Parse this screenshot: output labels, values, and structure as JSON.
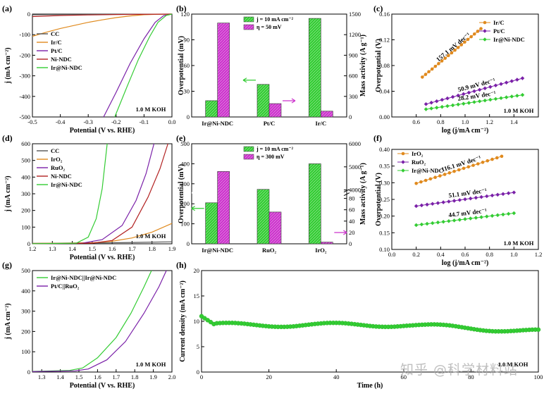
{
  "watermark": "知乎 @科学材料站",
  "chart_data": [
    {
      "panel": "(a)",
      "type": "line",
      "xlabel": "Potential (V vs. RHE)",
      "ylabel": "j (mA cm⁻²)",
      "xlim": [
        -0.5,
        0.0
      ],
      "ylim": [
        -500,
        0
      ],
      "xticks": [
        -0.5,
        -0.4,
        -0.3,
        -0.2,
        -0.1,
        0.0
      ],
      "yticks": [
        -500,
        -400,
        -300,
        -200,
        -100,
        0
      ],
      "annotations": [
        "1.0 M KOH"
      ],
      "legend_position": "middle-left",
      "series": [
        {
          "name": "CC",
          "color": "#555555",
          "points": [
            [
              -0.5,
              -3
            ],
            [
              -0.4,
              -2
            ],
            [
              -0.2,
              -1
            ],
            [
              0,
              0
            ]
          ]
        },
        {
          "name": "Ir/C",
          "color": "#e08a1e",
          "points": [
            [
              -0.5,
              -108
            ],
            [
              -0.45,
              -88
            ],
            [
              -0.4,
              -70
            ],
            [
              -0.35,
              -55
            ],
            [
              -0.3,
              -40
            ],
            [
              -0.25,
              -28
            ],
            [
              -0.2,
              -17
            ],
            [
              -0.15,
              -9
            ],
            [
              -0.1,
              -3
            ],
            [
              -0.05,
              -1
            ],
            [
              0,
              0
            ]
          ]
        },
        {
          "name": "Pt/C",
          "color": "#7a20a8",
          "points": [
            [
              -0.245,
              -500
            ],
            [
              -0.2,
              -380
            ],
            [
              -0.15,
              -240
            ],
            [
              -0.1,
              -120
            ],
            [
              -0.06,
              -40
            ],
            [
              -0.03,
              -8
            ],
            [
              0,
              0
            ]
          ]
        },
        {
          "name": "Ni-NDC",
          "color": "#b22222",
          "points": [
            [
              -0.5,
              -12
            ],
            [
              -0.4,
              -7
            ],
            [
              -0.3,
              -4
            ],
            [
              -0.2,
              -2
            ],
            [
              0,
              0
            ]
          ]
        },
        {
          "name": "Ir@Ni-NDC",
          "color": "#33cc33",
          "points": [
            [
              -0.205,
              -500
            ],
            [
              -0.16,
              -350
            ],
            [
              -0.12,
              -220
            ],
            [
              -0.08,
              -110
            ],
            [
              -0.05,
              -40
            ],
            [
              -0.02,
              -6
            ],
            [
              0,
              0
            ]
          ]
        }
      ]
    },
    {
      "panel": "(b)",
      "type": "bar",
      "categories": [
        "Ir@Ni-NDC",
        "Pt/C",
        "Ir/C"
      ],
      "ylabel": "Overpotential (mV)",
      "y2label": "Mass activity (A g⁻¹)",
      "ylim": [
        0,
        120
      ],
      "y2lim": [
        0,
        1500
      ],
      "yticks": [
        0,
        30,
        60,
        90,
        120
      ],
      "y2ticks": [
        0,
        300,
        600,
        900,
        1200,
        1500
      ],
      "legend_position": "top-left",
      "series": [
        {
          "name": "j = 10 mA cm⁻²",
          "axis": "left",
          "color": "#33cc33",
          "values": [
            19,
            38,
            115
          ]
        },
        {
          "name": "η = 50 mV",
          "axis": "right",
          "color": "#cc33cc",
          "values": [
            1370,
            195,
            85
          ]
        }
      ]
    },
    {
      "panel": "(c)",
      "type": "scatter",
      "xlabel": "log (j/mA cm⁻²)",
      "ylabel": "Overpotential (V)",
      "xlim": [
        0.4,
        1.6
      ],
      "ylim": [
        0.0,
        0.16
      ],
      "xticks": [
        0.6,
        0.8,
        1.0,
        1.2,
        1.4
      ],
      "yticks": [
        0.0,
        0.04,
        0.08,
        0.12,
        0.16
      ],
      "annotations": [
        "1.0 M KOH"
      ],
      "legend_position": "top-right",
      "series": [
        {
          "name": "Ir/C",
          "color": "#e08a1e",
          "marker": "circle",
          "x0": 0.65,
          "x1": 1.13,
          "y0": 0.062,
          "slope": 0.1571,
          "label": "157.1 mV dec⁻¹"
        },
        {
          "name": "Pt/C",
          "color": "#7a20a8",
          "marker": "diamond",
          "x0": 0.68,
          "x1": 1.47,
          "y0": 0.02,
          "slope": 0.0509,
          "label": "50.9 mV dec⁻¹"
        },
        {
          "name": "Ir@Ni-NDC",
          "color": "#33cc33",
          "marker": "diamond",
          "x0": 0.68,
          "x1": 1.47,
          "y0": 0.012,
          "slope": 0.0282,
          "label": "28.2 mV dec⁻¹"
        }
      ]
    },
    {
      "panel": "(d)",
      "type": "line",
      "xlabel": "Potential (V vs. RHE)",
      "ylabel": "j (mA cm⁻²)",
      "xlim": [
        1.2,
        1.9
      ],
      "ylim": [
        0,
        600
      ],
      "xticks": [
        1.2,
        1.3,
        1.4,
        1.5,
        1.6,
        1.7,
        1.8,
        1.9
      ],
      "yticks": [
        0,
        100,
        200,
        300,
        400,
        500,
        600
      ],
      "annotations": [
        "1.0 M KOH"
      ],
      "legend_position": "top-left",
      "series": [
        {
          "name": "CC",
          "color": "#555555",
          "points": [
            [
              1.2,
              3
            ],
            [
              1.5,
              5
            ],
            [
              1.7,
              8
            ],
            [
              1.9,
              12
            ]
          ]
        },
        {
          "name": "IrO₂",
          "color": "#e08a1e",
          "points": [
            [
              1.2,
              2
            ],
            [
              1.5,
              6
            ],
            [
              1.6,
              15
            ],
            [
              1.7,
              35
            ],
            [
              1.8,
              70
            ],
            [
              1.9,
              122
            ]
          ]
        },
        {
          "name": "RuO₂",
          "color": "#7a20a8",
          "points": [
            [
              1.2,
              1
            ],
            [
              1.45,
              4
            ],
            [
              1.55,
              25
            ],
            [
              1.65,
              110
            ],
            [
              1.72,
              260
            ],
            [
              1.77,
              420
            ],
            [
              1.81,
              600
            ]
          ]
        },
        {
          "name": "Ni-NDC",
          "color": "#b22222",
          "points": [
            [
              1.2,
              1
            ],
            [
              1.5,
              4
            ],
            [
              1.6,
              20
            ],
            [
              1.7,
              100
            ],
            [
              1.78,
              280
            ],
            [
              1.84,
              450
            ],
            [
              1.88,
              600
            ]
          ]
        },
        {
          "name": "Ir@Ni-NDC",
          "color": "#33cc33",
          "points": [
            [
              1.2,
              1
            ],
            [
              1.42,
              4
            ],
            [
              1.48,
              40
            ],
            [
              1.52,
              150
            ],
            [
              1.55,
              330
            ],
            [
              1.575,
              600
            ]
          ]
        }
      ]
    },
    {
      "panel": "(e)",
      "type": "bar",
      "categories": [
        "Ir@Ni-NDC",
        "RuO₂",
        "IrO₂"
      ],
      "ylabel": "Overpotential (mV)",
      "y2label": "Mass activity (A g⁻¹)",
      "ylim": [
        0,
        500
      ],
      "y2lim": [
        0,
        6000
      ],
      "yticks": [
        0,
        100,
        200,
        300,
        400,
        500
      ],
      "y2ticks_upper": [
        4000,
        5000,
        6000
      ],
      "y2ticks_lower": [
        0,
        20,
        40,
        60,
        80
      ],
      "legend_position": "top-left",
      "series": [
        {
          "name": "j = 10 mA cm⁻²",
          "axis": "left",
          "color": "#33cc33",
          "values": [
            205,
            272,
            400
          ]
        },
        {
          "name": "η = 300 mV",
          "axis": "right",
          "color": "#cc33cc",
          "values": [
            4800,
            56,
            3
          ]
        }
      ]
    },
    {
      "panel": "(f)",
      "type": "scatter",
      "xlabel": "log (j/mA cm⁻²)",
      "ylabel": "Overpotential (V)",
      "xlim": [
        0.0,
        1.2
      ],
      "ylim": [
        0.1,
        0.4
      ],
      "xticks": [
        0.0,
        0.2,
        0.4,
        0.6,
        0.8,
        1.0,
        1.2
      ],
      "yticks": [
        0.1,
        0.15,
        0.2,
        0.25,
        0.3,
        0.35,
        0.4
      ],
      "annotations": [
        "1.0 M KOH"
      ],
      "legend_position": "top-left",
      "series": [
        {
          "name": "IrO₂",
          "color": "#e08a1e",
          "marker": "circle",
          "x0": 0.2,
          "x1": 0.9,
          "y0": 0.298,
          "slope": 0.1161,
          "label": "116.1 mV dec⁻¹"
        },
        {
          "name": "RuO₂",
          "color": "#7a20a8",
          "marker": "diamond",
          "x0": 0.2,
          "x1": 1.0,
          "y0": 0.23,
          "slope": 0.0511,
          "label": "51.1 mV dec⁻¹"
        },
        {
          "name": "Ir@Ni-NDC",
          "color": "#33cc33",
          "marker": "diamond",
          "x0": 0.2,
          "x1": 1.0,
          "y0": 0.173,
          "slope": 0.0447,
          "label": "44.7 mV dec⁻¹"
        }
      ]
    },
    {
      "panel": "(g)",
      "type": "line",
      "xlabel": "Potential (V vs. RHE)",
      "ylabel": "j (mA cm⁻²)",
      "xlim": [
        1.25,
        2.0
      ],
      "ylim": [
        0,
        500
      ],
      "xticks": [
        1.3,
        1.4,
        1.5,
        1.6,
        1.7,
        1.8,
        1.9,
        2.0
      ],
      "yticks": [
        0,
        100,
        200,
        300,
        400,
        500
      ],
      "annotations": [
        "1.0 M KOH"
      ],
      "legend_position": "top-left",
      "series": [
        {
          "name": "Ir@Ni-NDC||Ir@Ni-NDC",
          "color": "#33cc33",
          "points": [
            [
              1.25,
              3
            ],
            [
              1.45,
              8
            ],
            [
              1.52,
              20
            ],
            [
              1.6,
              70
            ],
            [
              1.7,
              170
            ],
            [
              1.78,
              290
            ],
            [
              1.85,
              420
            ],
            [
              1.89,
              500
            ]
          ]
        },
        {
          "name": "Pt/C||RuO₂",
          "color": "#7a20a8",
          "points": [
            [
              1.25,
              2
            ],
            [
              1.48,
              6
            ],
            [
              1.55,
              15
            ],
            [
              1.65,
              60
            ],
            [
              1.75,
              150
            ],
            [
              1.85,
              290
            ],
            [
              1.93,
              420
            ],
            [
              1.97,
              500
            ]
          ]
        }
      ]
    },
    {
      "panel": "(h)",
      "type": "scatter",
      "xlabel": "Time (h)",
      "ylabel": "Current density (mA cm⁻²)",
      "xlim": [
        0,
        100
      ],
      "ylim": [
        0,
        20
      ],
      "xticks": [
        0,
        20,
        40,
        60,
        80,
        100
      ],
      "yticks": [
        0,
        5,
        10,
        15,
        20
      ],
      "annotations": [
        "1.0 M KOH"
      ],
      "series": [
        {
          "name": "",
          "color": "#33cc33",
          "start_value": 11.0,
          "mean_value": 9.3,
          "end_value": 8.0
        }
      ]
    }
  ]
}
